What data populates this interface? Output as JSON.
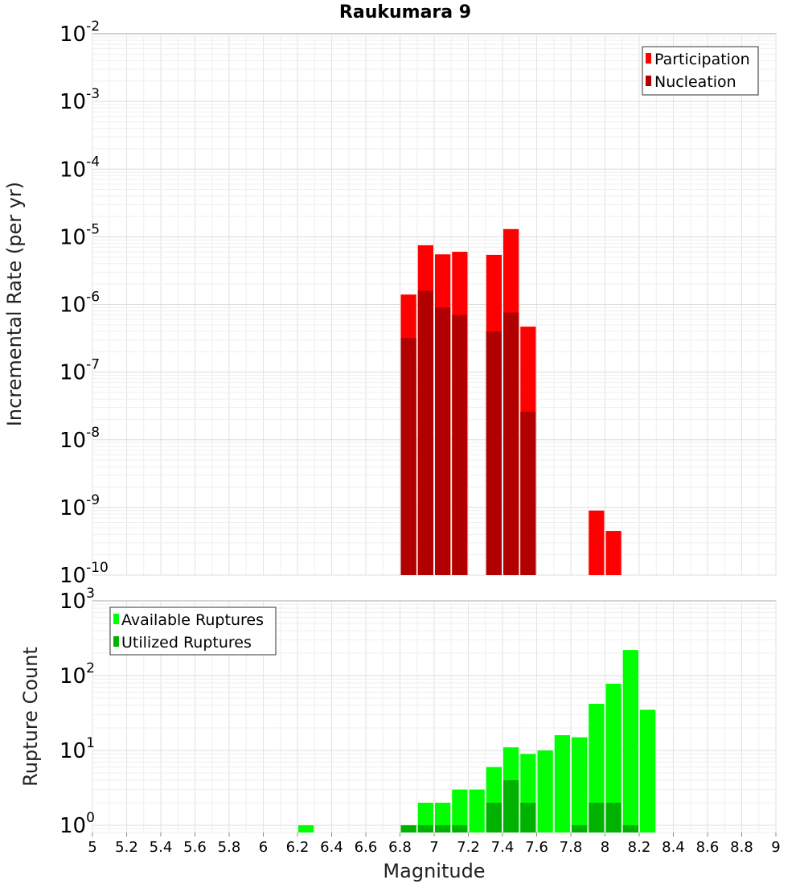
{
  "chart_data": [
    {
      "type": "bar",
      "title": "Raukumara 9",
      "xlabel": "",
      "ylabel": "Incremental Rate (per yr)",
      "xlim": [
        5,
        9
      ],
      "ylim": [
        1e-10,
        0.01
      ],
      "yscale": "log",
      "grid": true,
      "legend_position": "top-right",
      "bar_width": 0.1,
      "y_ticks": [
        {
          "base": "10",
          "exp": "-2"
        },
        {
          "base": "10",
          "exp": "-3"
        },
        {
          "base": "10",
          "exp": "-4"
        },
        {
          "base": "10",
          "exp": "-5"
        },
        {
          "base": "10",
          "exp": "-6"
        },
        {
          "base": "10",
          "exp": "-7"
        },
        {
          "base": "10",
          "exp": "-8"
        },
        {
          "base": "10",
          "exp": "-9"
        },
        {
          "base": "10",
          "exp": "-10"
        }
      ],
      "series": [
        {
          "name": "Participation",
          "color": "#ff0000",
          "x": [
            6.85,
            6.95,
            7.05,
            7.15,
            7.35,
            7.45,
            7.55,
            7.95,
            8.05
          ],
          "values": [
            1.4e-06,
            7.5e-06,
            5.5e-06,
            6e-06,
            5.4e-06,
            1.3e-05,
            4.7e-07,
            9e-10,
            4.5e-10
          ]
        },
        {
          "name": "Nucleation",
          "color": "#b20000",
          "x": [
            6.85,
            6.95,
            7.05,
            7.15,
            7.35,
            7.45,
            7.55
          ],
          "values": [
            3.2e-07,
            1.6e-06,
            9e-07,
            7e-07,
            4e-07,
            7.6e-07,
            2.6e-08
          ]
        }
      ]
    },
    {
      "type": "bar",
      "title": "",
      "xlabel": "Magnitude",
      "ylabel": "Rupture Count",
      "xlim": [
        5,
        9
      ],
      "ylim": [
        0.8,
        1000
      ],
      "yscale": "log",
      "grid": true,
      "legend_position": "top-left",
      "bar_width": 0.1,
      "x_ticks": [
        "5",
        "5.2",
        "5.4",
        "5.6",
        "5.8",
        "6",
        "6.2",
        "6.4",
        "6.6",
        "6.8",
        "7",
        "7.2",
        "7.4",
        "7.6",
        "7.8",
        "8",
        "8.2",
        "8.4",
        "8.6",
        "8.8",
        "9"
      ],
      "y_ticks": [
        {
          "base": "10",
          "exp": "3"
        },
        {
          "base": "10",
          "exp": "2"
        },
        {
          "base": "10",
          "exp": "1"
        },
        {
          "base": "10",
          "exp": "0"
        }
      ],
      "series": [
        {
          "name": "Available Ruptures",
          "color": "#00ff00",
          "x": [
            6.25,
            6.85,
            6.95,
            7.05,
            7.15,
            7.25,
            7.35,
            7.45,
            7.55,
            7.65,
            7.75,
            7.85,
            7.95,
            8.05,
            8.15,
            8.25
          ],
          "values": [
            1,
            1,
            2,
            2,
            3,
            3,
            6,
            11,
            9,
            10,
            16,
            15,
            42,
            78,
            220,
            35
          ]
        },
        {
          "name": "Utilized Ruptures",
          "color": "#00b200",
          "x": [
            6.85,
            6.95,
            7.05,
            7.15,
            7.35,
            7.45,
            7.55,
            7.85,
            7.95,
            8.05,
            8.15
          ],
          "values": [
            1,
            1,
            1,
            1,
            2,
            4,
            2,
            1,
            2,
            2,
            1
          ]
        }
      ]
    }
  ]
}
